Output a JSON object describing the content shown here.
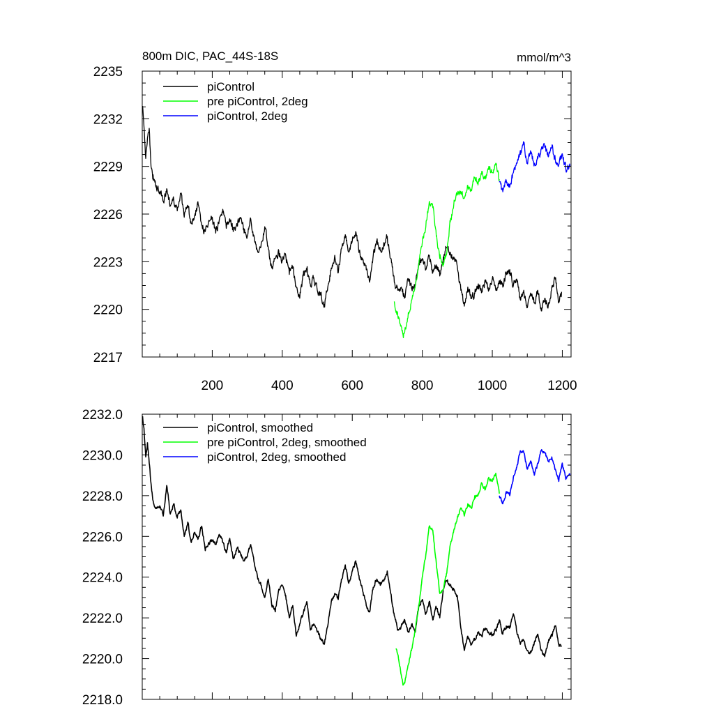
{
  "figure": {
    "title_left": "800m DIC, PAC_44S-18S",
    "title_right": "mmol/m^3"
  },
  "chart_data": [
    {
      "type": "line",
      "xlim": [
        0,
        1225
      ],
      "ylim": [
        2217,
        2235
      ],
      "x_ticks": [
        200,
        400,
        600,
        800,
        1000,
        1200
      ],
      "x_tick_labels": [
        "200",
        "400",
        "600",
        "800",
        "1000",
        "1200"
      ],
      "y_ticks": [
        2217,
        2220,
        2223,
        2226,
        2229,
        2232,
        2235
      ],
      "y_tick_labels": [
        "2217",
        "2220",
        "2223",
        "2226",
        "2229",
        "2232",
        "2235"
      ],
      "grid": false,
      "legend_position": "top-left",
      "series": [
        {
          "name": "piControl",
          "color": "#000000",
          "x": [
            1,
            5,
            10,
            15,
            20,
            25,
            30,
            40,
            50,
            60,
            70,
            80,
            90,
            100,
            110,
            120,
            130,
            140,
            150,
            160,
            170,
            180,
            190,
            200,
            210,
            220,
            230,
            240,
            250,
            260,
            270,
            280,
            290,
            300,
            310,
            320,
            330,
            340,
            350,
            360,
            370,
            380,
            390,
            400,
            410,
            420,
            430,
            440,
            450,
            460,
            470,
            480,
            490,
            500,
            510,
            520,
            530,
            540,
            550,
            560,
            570,
            580,
            590,
            600,
            610,
            620,
            630,
            640,
            650,
            660,
            670,
            680,
            690,
            700,
            710,
            720,
            730,
            740,
            750,
            760,
            770,
            780,
            790,
            800,
            810,
            820,
            830,
            840,
            850,
            860,
            870,
            880,
            890,
            900,
            910,
            920,
            930,
            940,
            950,
            960,
            970,
            980,
            990,
            1000,
            1010,
            1020,
            1030,
            1040,
            1050,
            1060,
            1070,
            1080,
            1090,
            1100,
            1110,
            1120,
            1130,
            1140,
            1150,
            1160,
            1170,
            1180,
            1190,
            1198
          ],
          "values": [
            2232.8,
            2231.5,
            2229.5,
            2230.8,
            2231.4,
            2229.0,
            2228.2,
            2227.8,
            2227.4,
            2226.8,
            2227.6,
            2226.5,
            2226.9,
            2226.2,
            2227.3,
            2225.8,
            2226.4,
            2225.4,
            2225.9,
            2226.6,
            2225.3,
            2224.9,
            2225.6,
            2225.8,
            2224.8,
            2225.6,
            2226.3,
            2225.1,
            2225.7,
            2224.9,
            2225.4,
            2225.8,
            2225.1,
            2224.6,
            2225.7,
            2224.5,
            2223.6,
            2224.2,
            2225.2,
            2223.9,
            2222.6,
            2223.2,
            2223.7,
            2223.1,
            2223.4,
            2222.2,
            2222.7,
            2221.4,
            2220.7,
            2222.1,
            2222.5,
            2221.6,
            2222.0,
            2221.2,
            2220.9,
            2220.3,
            2221.4,
            2222.6,
            2223.4,
            2222.3,
            2223.9,
            2224.7,
            2223.6,
            2224.3,
            2224.9,
            2223.6,
            2223.1,
            2222.5,
            2221.8,
            2223.4,
            2224.3,
            2223.7,
            2224.2,
            2224.6,
            2223.2,
            2221.7,
            2221.2,
            2221.4,
            2220.8,
            2221.9,
            2221.3,
            2221.5,
            2222.9,
            2223.2,
            2222.5,
            2223.4,
            2222.3,
            2222.8,
            2222.1,
            2223.3,
            2223.9,
            2223.6,
            2223.3,
            2222.7,
            2221.2,
            2220.2,
            2221.4,
            2220.7,
            2221.0,
            2221.6,
            2221.1,
            2221.7,
            2221.3,
            2221.9,
            2221.2,
            2221.8,
            2221.4,
            2222.3,
            2222.5,
            2221.5,
            2221.9,
            2220.6,
            2221.2,
            2220.1,
            2220.9,
            2220.4,
            2221.2,
            2219.9,
            2220.7,
            2220.3,
            2221.4,
            2221.9,
            2220.5,
            2221.1
          ],
          "noise_amplitude": 0.45
        },
        {
          "name": "pre piControl, 2deg",
          "color": "#00ff00",
          "x": [
            720,
            730,
            740,
            745,
            750,
            760,
            770,
            780,
            790,
            800,
            810,
            820,
            830,
            840,
            850,
            860,
            870,
            880,
            890,
            900,
            910,
            920,
            930,
            940,
            950,
            960,
            970,
            980,
            990,
            1000,
            1010,
            1020
          ],
          "values": [
            2220.5,
            2219.6,
            2218.9,
            2218.4,
            2218.6,
            2219.8,
            2220.6,
            2221.5,
            2222.8,
            2224.2,
            2225.2,
            2226.8,
            2226.4,
            2224.6,
            2223.2,
            2222.9,
            2223.6,
            2225.5,
            2226.6,
            2227.2,
            2227.4,
            2227.0,
            2227.8,
            2227.5,
            2228.3,
            2228.0,
            2228.7,
            2228.2,
            2229.0,
            2228.6,
            2229.2,
            2228.2
          ],
          "noise_amplitude": 0.4
        },
        {
          "name": "piControl, 2deg",
          "color": "#0000ff",
          "x": [
            1020,
            1030,
            1040,
            1050,
            1060,
            1070,
            1080,
            1090,
            1100,
            1110,
            1120,
            1130,
            1140,
            1150,
            1160,
            1170,
            1180,
            1190,
            1200,
            1210,
            1222
          ],
          "values": [
            2228.0,
            2227.4,
            2228.1,
            2227.7,
            2228.6,
            2229.2,
            2230.0,
            2230.4,
            2229.2,
            2229.8,
            2229.1,
            2229.5,
            2230.1,
            2230.2,
            2229.6,
            2230.2,
            2229.4,
            2229.1,
            2229.8,
            2228.8,
            2229.0
          ],
          "noise_amplitude": 0.45
        }
      ]
    },
    {
      "type": "line",
      "xlim": [
        0,
        1225
      ],
      "ylim": [
        2218.0,
        2232.0
      ],
      "x_ticks": [
        200,
        400,
        600,
        800,
        1000,
        1200
      ],
      "y_ticks": [
        2218.0,
        2220.0,
        2222.0,
        2224.0,
        2226.0,
        2228.0,
        2230.0,
        2232.0
      ],
      "y_tick_labels": [
        "2218.0",
        "2220.0",
        "2222.0",
        "2224.0",
        "2226.0",
        "2228.0",
        "2230.0",
        "2232.0"
      ],
      "grid": false,
      "legend_position": "top-left",
      "series": [
        {
          "name": "piControl, smoothed",
          "color": "#000000",
          "x": [
            1,
            5,
            10,
            15,
            20,
            25,
            30,
            40,
            50,
            60,
            70,
            80,
            90,
            100,
            110,
            120,
            130,
            140,
            150,
            160,
            170,
            180,
            190,
            200,
            210,
            220,
            230,
            240,
            250,
            260,
            270,
            280,
            290,
            300,
            310,
            320,
            330,
            340,
            350,
            360,
            370,
            380,
            390,
            400,
            410,
            420,
            430,
            440,
            450,
            460,
            470,
            480,
            490,
            500,
            510,
            520,
            530,
            540,
            550,
            560,
            570,
            580,
            590,
            600,
            610,
            620,
            630,
            640,
            650,
            660,
            670,
            680,
            690,
            700,
            710,
            720,
            730,
            740,
            750,
            760,
            770,
            780,
            790,
            800,
            810,
            820,
            830,
            840,
            850,
            860,
            870,
            880,
            890,
            900,
            910,
            920,
            930,
            940,
            950,
            960,
            970,
            980,
            990,
            1000,
            1010,
            1020,
            1030,
            1040,
            1050,
            1060,
            1070,
            1080,
            1090,
            1100,
            1110,
            1120,
            1130,
            1140,
            1150,
            1160,
            1170,
            1180,
            1190,
            1198
          ],
          "values": [
            2231.9,
            2231.3,
            2229.9,
            2230.6,
            2229.6,
            2228.6,
            2227.8,
            2227.4,
            2227.5,
            2227.0,
            2228.5,
            2227.1,
            2227.6,
            2226.9,
            2227.3,
            2226.0,
            2226.7,
            2225.7,
            2226.2,
            2225.9,
            2226.5,
            2225.3,
            2225.7,
            2225.8,
            2225.6,
            2226.1,
            2225.7,
            2225.2,
            2225.9,
            2224.9,
            2225.4,
            2225.2,
            2224.8,
            2225.0,
            2225.6,
            2224.7,
            2223.9,
            2223.6,
            2223.0,
            2223.9,
            2222.6,
            2222.3,
            2223.4,
            2223.6,
            2223.1,
            2222.0,
            2222.6,
            2221.1,
            2221.7,
            2222.2,
            2222.8,
            2221.4,
            2221.7,
            2221.3,
            2221.0,
            2220.7,
            2221.6,
            2222.8,
            2223.2,
            2222.9,
            2223.9,
            2224.6,
            2223.7,
            2224.3,
            2224.8,
            2223.9,
            2223.3,
            2222.6,
            2222.3,
            2223.5,
            2223.9,
            2223.6,
            2223.8,
            2224.3,
            2223.2,
            2222.1,
            2221.4,
            2221.6,
            2221.9,
            2221.3,
            2221.7,
            2221.3,
            2222.6,
            2222.9,
            2222.2,
            2222.8,
            2221.9,
            2222.5,
            2222.0,
            2223.4,
            2223.8,
            2223.6,
            2223.4,
            2223.1,
            2221.5,
            2220.4,
            2221.1,
            2220.7,
            2220.9,
            2221.3,
            2221.1,
            2221.5,
            2221.3,
            2221.2,
            2221.4,
            2221.9,
            2221.2,
            2221.6,
            2221.6,
            2222.2,
            2221.3,
            2220.7,
            2220.9,
            2220.4,
            2220.3,
            2220.8,
            2221.2,
            2220.4,
            2220.1,
            2220.8,
            2221.1,
            2221.6,
            2220.7,
            2220.6
          ],
          "noise_amplitude": 0.18
        },
        {
          "name": "pre piControl, 2deg, smoothed",
          "color": "#00ff00",
          "x": [
            725,
            730,
            740,
            745,
            750,
            760,
            770,
            780,
            790,
            800,
            810,
            820,
            830,
            840,
            850,
            860,
            870,
            880,
            890,
            900,
            910,
            920,
            930,
            940,
            950,
            960,
            970,
            980,
            990,
            1000,
            1010,
            1020
          ],
          "values": [
            2220.5,
            2220.2,
            2219.2,
            2218.7,
            2218.8,
            2219.7,
            2220.5,
            2221.4,
            2222.6,
            2224.0,
            2225.1,
            2226.5,
            2226.3,
            2224.7,
            2223.2,
            2223.4,
            2224.2,
            2225.6,
            2226.3,
            2226.9,
            2227.4,
            2227.0,
            2227.6,
            2227.4,
            2228.0,
            2228.1,
            2228.6,
            2228.3,
            2228.9,
            2228.7,
            2229.1,
            2228.1
          ],
          "noise_amplitude": 0.15
        },
        {
          "name": "piControl, 2deg, smoothed",
          "color": "#0000ff",
          "x": [
            1020,
            1030,
            1040,
            1050,
            1060,
            1070,
            1080,
            1090,
            1100,
            1110,
            1120,
            1130,
            1140,
            1150,
            1160,
            1170,
            1180,
            1190,
            1200,
            1210,
            1222
          ],
          "values": [
            2228.0,
            2227.6,
            2228.2,
            2228.0,
            2228.9,
            2229.4,
            2230.2,
            2230.1,
            2229.3,
            2229.7,
            2229.0,
            2229.6,
            2230.2,
            2230.1,
            2229.7,
            2229.9,
            2229.3,
            2228.7,
            2229.6,
            2228.8,
            2229.0
          ],
          "noise_amplitude": 0.15
        }
      ]
    }
  ]
}
